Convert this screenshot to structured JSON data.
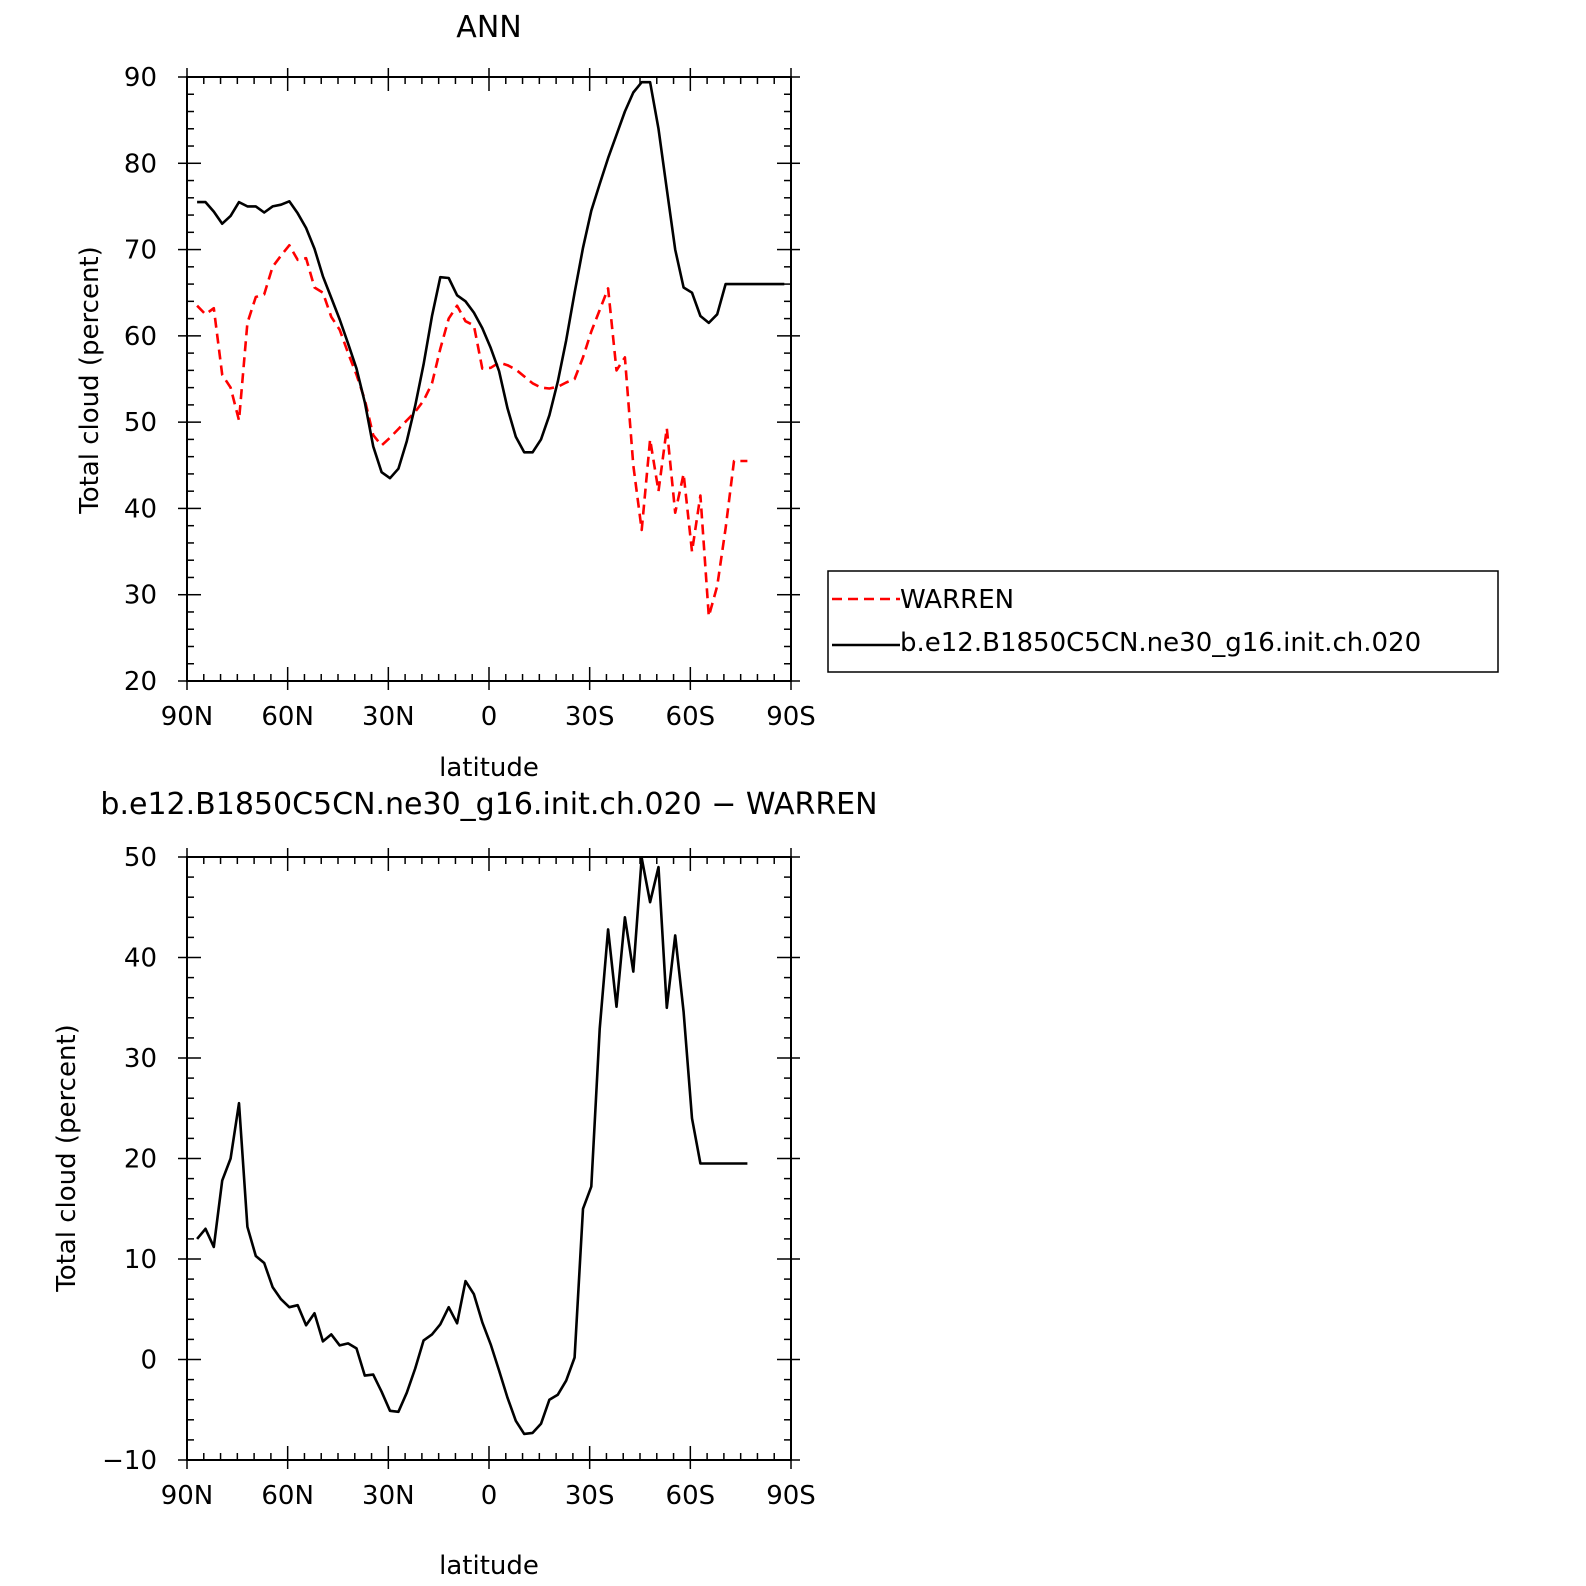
{
  "chart_data": [
    {
      "type": "line",
      "title": "ANN",
      "xlabel": "latitude",
      "ylabel": "Total cloud (percent)",
      "xlim": [
        90,
        -90
      ],
      "ylim": [
        20,
        90
      ],
      "x_ticks": [
        90,
        60,
        30,
        0,
        -30,
        -60,
        -90
      ],
      "x_tick_labels": [
        "90N",
        "60N",
        "30N",
        "0",
        "30S",
        "60S",
        "90S"
      ],
      "y_ticks": [
        20,
        30,
        40,
        50,
        60,
        70,
        80,
        90
      ],
      "y_tick_labels": [
        "20",
        "30",
        "40",
        "50",
        "60",
        "70",
        "80",
        "90"
      ],
      "legend": "right",
      "series": [
        {
          "name": "WARREN",
          "color": "#ff0000",
          "dash": "dashed",
          "x": [
            87,
            84.5,
            82,
            79.5,
            77,
            74.5,
            72,
            69.5,
            67,
            64.5,
            62,
            59.5,
            57,
            54.5,
            52,
            49.5,
            47,
            44.5,
            42,
            39.5,
            37,
            34.5,
            32,
            29.5,
            27,
            24.5,
            22,
            19.5,
            17,
            14.5,
            12,
            9.5,
            7,
            4.5,
            2,
            -0.5,
            -3,
            -5.5,
            -8,
            -10.5,
            -13,
            -15.5,
            -18,
            -20.5,
            -23,
            -25.5,
            -28,
            -30.5,
            -33,
            -35.5,
            -38,
            -40.5,
            -43,
            -45.5,
            -48,
            -50.5,
            -53,
            -55.5,
            -58,
            -60.5,
            -63,
            -65.5,
            -68,
            -70.5,
            -73,
            -75.5,
            -77
          ],
          "y": [
            63.5,
            62.5,
            63.2,
            55.5,
            54,
            50.2,
            61.5,
            64.5,
            64.8,
            68,
            69.3,
            70.5,
            68.8,
            69,
            65.6,
            65,
            62.2,
            60.7,
            58,
            55.5,
            52.6,
            48.5,
            47.3,
            48.2,
            49.2,
            50.2,
            51.2,
            52.5,
            54.5,
            58.5,
            62,
            63.5,
            61.7,
            61.2,
            56.2,
            56.3,
            56.9,
            56.6,
            56.1,
            55.3,
            54.5,
            54,
            53.9,
            54.1,
            54.6,
            55,
            57.5,
            60.5,
            63,
            65.5,
            56,
            57.5,
            45,
            37.5,
            48,
            42,
            49.3,
            39.5,
            44,
            35,
            41.5,
            27.5,
            31,
            37.7,
            45.5,
            45.5,
            45.5
          ]
        },
        {
          "name": "b.e12.B1850C5CN.ne30_g16.init.ch.020",
          "color": "#000000",
          "dash": "solid",
          "x": [
            87,
            84.5,
            82,
            79.5,
            77,
            74.5,
            72,
            69.5,
            67,
            64.5,
            62,
            59.5,
            57,
            54.5,
            52,
            49.5,
            47,
            44.5,
            42,
            39.5,
            37,
            34.5,
            32,
            29.5,
            27,
            24.5,
            22,
            19.5,
            17,
            14.5,
            12,
            9.5,
            7,
            4.5,
            2,
            -0.5,
            -3,
            -5.5,
            -8,
            -10.5,
            -13,
            -15.5,
            -18,
            -20.5,
            -23,
            -25.5,
            -28,
            -30.5,
            -33,
            -35.5,
            -38,
            -40.5,
            -43,
            -45.5,
            -48,
            -50.5,
            -53,
            -55.5,
            -58,
            -60.5,
            -63,
            -65.5,
            -68,
            -70.5,
            -73,
            -75.5,
            -78,
            -80.5,
            -83,
            -85.5,
            -88
          ],
          "y": [
            75.5,
            75.5,
            74.4,
            73,
            73.9,
            75.5,
            75,
            75,
            74.3,
            75,
            75.2,
            75.6,
            74.2,
            72.5,
            70.1,
            66.9,
            64.4,
            61.9,
            59.1,
            56.2,
            52.3,
            47.2,
            44.2,
            43.5,
            44.6,
            47.8,
            51.9,
            56.7,
            62.3,
            66.8,
            66.7,
            64.7,
            64,
            62.7,
            60.9,
            58.6,
            55.9,
            51.6,
            48.3,
            46.5,
            46.5,
            48,
            50.8,
            54.7,
            59.5,
            65,
            70.2,
            74.5,
            77.6,
            80.6,
            83.3,
            86,
            88.2,
            89.4,
            89.4,
            84,
            77,
            70,
            65.6,
            65,
            62.3,
            61.5,
            62.5,
            66,
            66,
            66,
            66,
            66,
            66,
            66,
            66
          ]
        }
      ]
    },
    {
      "type": "line",
      "title": "b.e12.B1850C5CN.ne30_g16.init.ch.020 − WARREN",
      "xlabel": "latitude",
      "ylabel": "Total cloud (percent)",
      "xlim": [
        90,
        -90
      ],
      "ylim": [
        -10,
        50
      ],
      "x_ticks": [
        90,
        60,
        30,
        0,
        -30,
        -60,
        -90
      ],
      "x_tick_labels": [
        "90N",
        "60N",
        "30N",
        "0",
        "30S",
        "60S",
        "90S"
      ],
      "y_ticks": [
        -10,
        0,
        10,
        20,
        30,
        40,
        50
      ],
      "y_tick_labels": [
        "−10",
        "0",
        "10",
        "20",
        "30",
        "40",
        "50"
      ],
      "series": [
        {
          "color": "#000000",
          "dash": "solid",
          "x": [
            87,
            84.5,
            82,
            79.5,
            77,
            74.5,
            72,
            69.5,
            67,
            64.5,
            62,
            59.5,
            57,
            54.5,
            52,
            49.5,
            47,
            44.5,
            42,
            39.5,
            37,
            34.5,
            32,
            29.5,
            27,
            24.5,
            22,
            19.5,
            17,
            14.5,
            12,
            9.5,
            7,
            4.5,
            2,
            -0.5,
            -3,
            -5.5,
            -8,
            -10.5,
            -13,
            -15.5,
            -18,
            -20.5,
            -23,
            -25.5,
            -28,
            -30.5,
            -33,
            -35.5,
            -38,
            -40.5,
            -43,
            -45.5,
            -48,
            -50.5,
            -53,
            -55.5,
            -58,
            -60.5,
            -63,
            -65.5,
            -68,
            -70.5,
            -73,
            -75.5,
            -77
          ],
          "y": [
            12,
            13,
            11.2,
            17.8,
            20,
            25.5,
            13.2,
            10.3,
            9.6,
            7.2,
            6,
            5.2,
            5.4,
            3.4,
            4.6,
            1.8,
            2.5,
            1.4,
            1.6,
            1.1,
            -1.6,
            -1.5,
            -3.2,
            -5.1,
            -5.2,
            -3.3,
            -0.9,
            1.9,
            2.5,
            3.5,
            5.2,
            3.6,
            7.8,
            6.5,
            3.7,
            1.5,
            -1.1,
            -3.8,
            -6.1,
            -7.4,
            -7.3,
            -6.4,
            -4,
            -3.5,
            -2.1,
            0.2,
            15,
            17.2,
            32.9,
            42.8,
            35.1,
            44,
            38.6,
            49.9,
            45.5,
            49,
            35,
            42.2,
            34.6,
            24,
            19.5,
            19.5,
            19.5,
            19.5,
            19.5,
            19.5,
            19.5
          ]
        }
      ]
    }
  ]
}
